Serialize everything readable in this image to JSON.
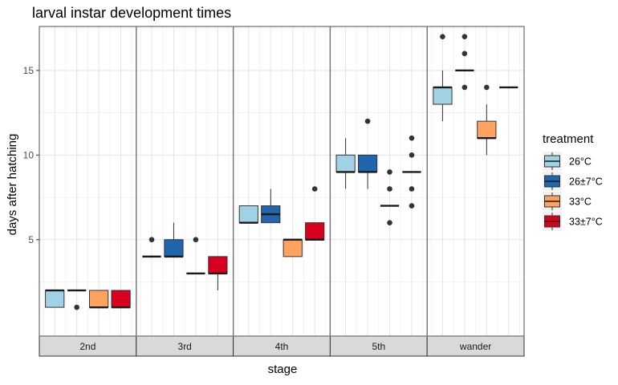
{
  "chart_data": {
    "type": "boxplot",
    "title": "larval instar development times",
    "xlabel": "stage",
    "ylabel": "days after hatching",
    "ylim": [
      -0.7,
      17.6
    ],
    "yticks": [
      5,
      10,
      15
    ],
    "grid": true,
    "legend": {
      "title": "treatment",
      "position": "right",
      "entries": [
        {
          "label": "26°C",
          "color": "#9ed2e4"
        },
        {
          "label": "26±7°C",
          "color": "#2166ac"
        },
        {
          "label": "33°C",
          "color": "#fda35f"
        },
        {
          "label": "33±7°C",
          "color": "#d7001e"
        }
      ]
    },
    "facets": [
      "2nd",
      "3rd",
      "4th",
      "5th",
      "wander"
    ],
    "boxes": [
      {
        "stage": "2nd",
        "treatment": "26°C",
        "min": 1,
        "q1": 1,
        "median": 2,
        "q3": 2,
        "max": 2,
        "outliers": []
      },
      {
        "stage": "2nd",
        "treatment": "26±7°C",
        "min": 2,
        "q1": 2,
        "median": 2,
        "q3": 2,
        "max": 2,
        "outliers": [
          1
        ]
      },
      {
        "stage": "2nd",
        "treatment": "33°C",
        "min": 1,
        "q1": 1,
        "median": 1,
        "q3": 2,
        "max": 2,
        "outliers": []
      },
      {
        "stage": "2nd",
        "treatment": "33±7°C",
        "min": 1,
        "q1": 1,
        "median": 1,
        "q3": 2,
        "max": 2,
        "outliers": []
      },
      {
        "stage": "3rd",
        "treatment": "26°C",
        "min": 4,
        "q1": 4,
        "median": 4,
        "q3": 4,
        "max": 4,
        "outliers": [
          5
        ]
      },
      {
        "stage": "3rd",
        "treatment": "26±7°C",
        "min": 4,
        "q1": 4,
        "median": 4,
        "q3": 5,
        "max": 6,
        "outliers": []
      },
      {
        "stage": "3rd",
        "treatment": "33°C",
        "min": 3,
        "q1": 3,
        "median": 3,
        "q3": 3,
        "max": 3,
        "outliers": [
          5
        ]
      },
      {
        "stage": "3rd",
        "treatment": "33±7°C",
        "min": 2,
        "q1": 3,
        "median": 3,
        "q3": 4,
        "max": 4,
        "outliers": []
      },
      {
        "stage": "4th",
        "treatment": "26°C",
        "min": 6,
        "q1": 6,
        "median": 6,
        "q3": 7,
        "max": 7,
        "outliers": []
      },
      {
        "stage": "4th",
        "treatment": "26±7°C",
        "min": 6,
        "q1": 6,
        "median": 6.5,
        "q3": 7,
        "max": 8,
        "outliers": []
      },
      {
        "stage": "4th",
        "treatment": "33°C",
        "min": 4,
        "q1": 4,
        "median": 5,
        "q3": 5,
        "max": 5,
        "outliers": []
      },
      {
        "stage": "4th",
        "treatment": "33±7°C",
        "min": 5,
        "q1": 5,
        "median": 5,
        "q3": 6,
        "max": 6,
        "outliers": [
          8
        ]
      },
      {
        "stage": "5th",
        "treatment": "26°C",
        "min": 8,
        "q1": 9,
        "median": 9,
        "q3": 10,
        "max": 11,
        "outliers": []
      },
      {
        "stage": "5th",
        "treatment": "26±7°C",
        "min": 8,
        "q1": 9,
        "median": 9,
        "q3": 10,
        "max": 10,
        "outliers": [
          12
        ]
      },
      {
        "stage": "5th",
        "treatment": "33°C",
        "min": 7,
        "q1": 7,
        "median": 7,
        "q3": 7,
        "max": 7,
        "outliers": [
          6,
          8,
          9
        ]
      },
      {
        "stage": "5th",
        "treatment": "33±7°C",
        "min": 9,
        "q1": 9,
        "median": 9,
        "q3": 9,
        "max": 9,
        "outliers": [
          7,
          8,
          10,
          11
        ]
      },
      {
        "stage": "wander",
        "treatment": "26°C",
        "min": 12,
        "q1": 13,
        "median": 14,
        "q3": 14,
        "max": 15,
        "outliers": [
          17
        ]
      },
      {
        "stage": "wander",
        "treatment": "26±7°C",
        "min": 15,
        "q1": 15,
        "median": 15,
        "q3": 15,
        "max": 15,
        "outliers": [
          14,
          16,
          17
        ]
      },
      {
        "stage": "wander",
        "treatment": "33°C",
        "min": 10,
        "q1": 11,
        "median": 11,
        "q3": 12,
        "max": 13,
        "outliers": [
          14
        ]
      },
      {
        "stage": "wander",
        "treatment": "33±7°C",
        "min": 14,
        "q1": 14,
        "median": 14,
        "q3": 14,
        "max": 14,
        "outliers": []
      }
    ]
  }
}
